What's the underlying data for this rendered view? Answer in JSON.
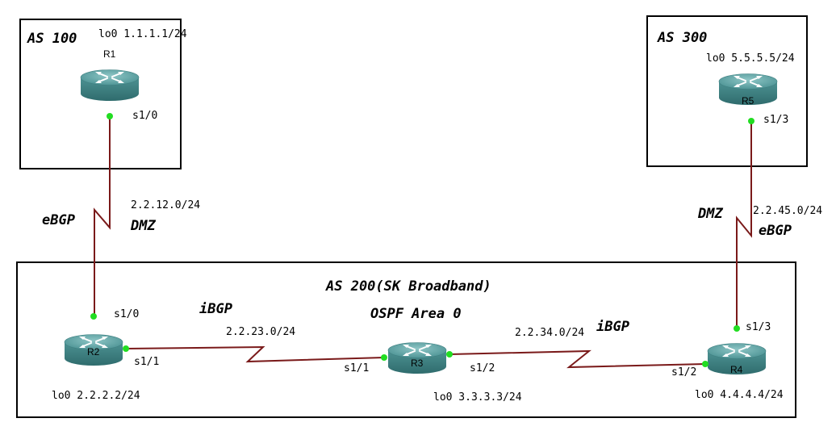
{
  "areas": {
    "as100": "AS 100",
    "as300": "AS 300",
    "as200": "AS 200(SK Broadband)",
    "ospf": "OSPF Area 0"
  },
  "routers": {
    "r1": {
      "name": "R1",
      "loopback": "lo0 1.1.1.1/24"
    },
    "r2": {
      "name": "R2",
      "loopback": "lo0 2.2.2.2/24"
    },
    "r3": {
      "name": "R3",
      "loopback": "lo0 3.3.3.3/24"
    },
    "r4": {
      "name": "R4",
      "loopback": "lo0 4.4.4.4/24"
    },
    "r5": {
      "name": "R5",
      "loopback": "lo0 5.5.5.5/24"
    }
  },
  "interfaces": {
    "r1_s10": "s1/0",
    "r2_s10": "s1/0",
    "r2_s11": "s1/1",
    "r3_s11": "s1/1",
    "r3_s12": "s1/2",
    "r4_s12": "s1/2",
    "r4_s13": "s1/3",
    "r5_s13": "s1/3"
  },
  "links": {
    "r1r2": {
      "subnet": "2.2.12.0/24",
      "type": "eBGP",
      "zone": "DMZ"
    },
    "r2r3": {
      "subnet": "2.2.23.0/24",
      "type": "iBGP"
    },
    "r3r4": {
      "subnet": "2.2.34.0/24",
      "type": "iBGP"
    },
    "r4r5": {
      "subnet": "2.2.45.0/24",
      "type": "eBGP",
      "zone": "DMZ"
    }
  },
  "colors": {
    "link": "#7a1a1a",
    "port": "#22dd22",
    "router_top": "#62a6a6",
    "router_side": "#3f7f80"
  }
}
